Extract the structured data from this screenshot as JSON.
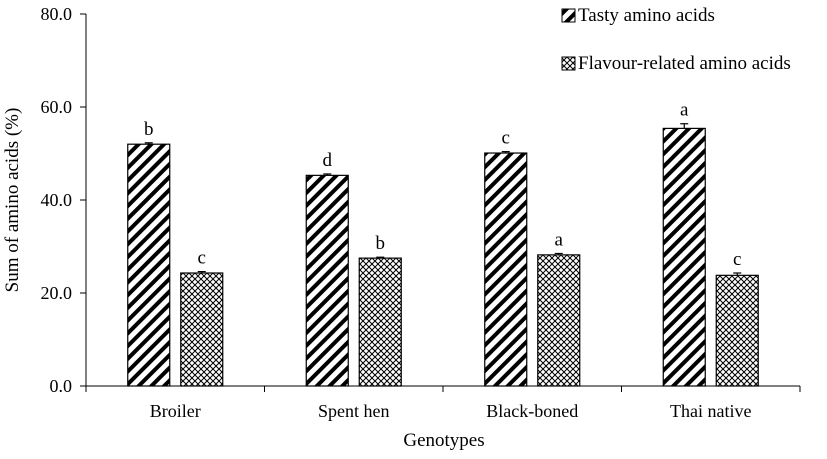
{
  "chart_data": {
    "type": "bar",
    "categories": [
      "Broiler",
      "Spent hen",
      "Black-boned",
      "Thai native"
    ],
    "series": [
      {
        "name": "Tasty amino acids",
        "pattern": "diagonal-hatch",
        "values": [
          52.0,
          45.3,
          50.1,
          55.4
        ],
        "errors": [
          0.3,
          0.3,
          0.3,
          1.0
        ],
        "letters": [
          "b",
          "d",
          "c",
          "a"
        ]
      },
      {
        "name": "Flavour-related amino acids",
        "pattern": "crosshatch",
        "values": [
          24.3,
          27.5,
          28.2,
          23.8
        ],
        "errors": [
          0.3,
          0.2,
          0.3,
          0.5
        ],
        "letters": [
          "c",
          "b",
          "a",
          "c"
        ]
      }
    ],
    "xlabel": "Genotypes",
    "ylabel": "Sum of amino acids (%)",
    "ylim": [
      0,
      80
    ],
    "yticks": [
      "0.0",
      "20.0",
      "40.0",
      "60.0",
      "80.0"
    ],
    "grid": false,
    "legend": "top-right"
  }
}
